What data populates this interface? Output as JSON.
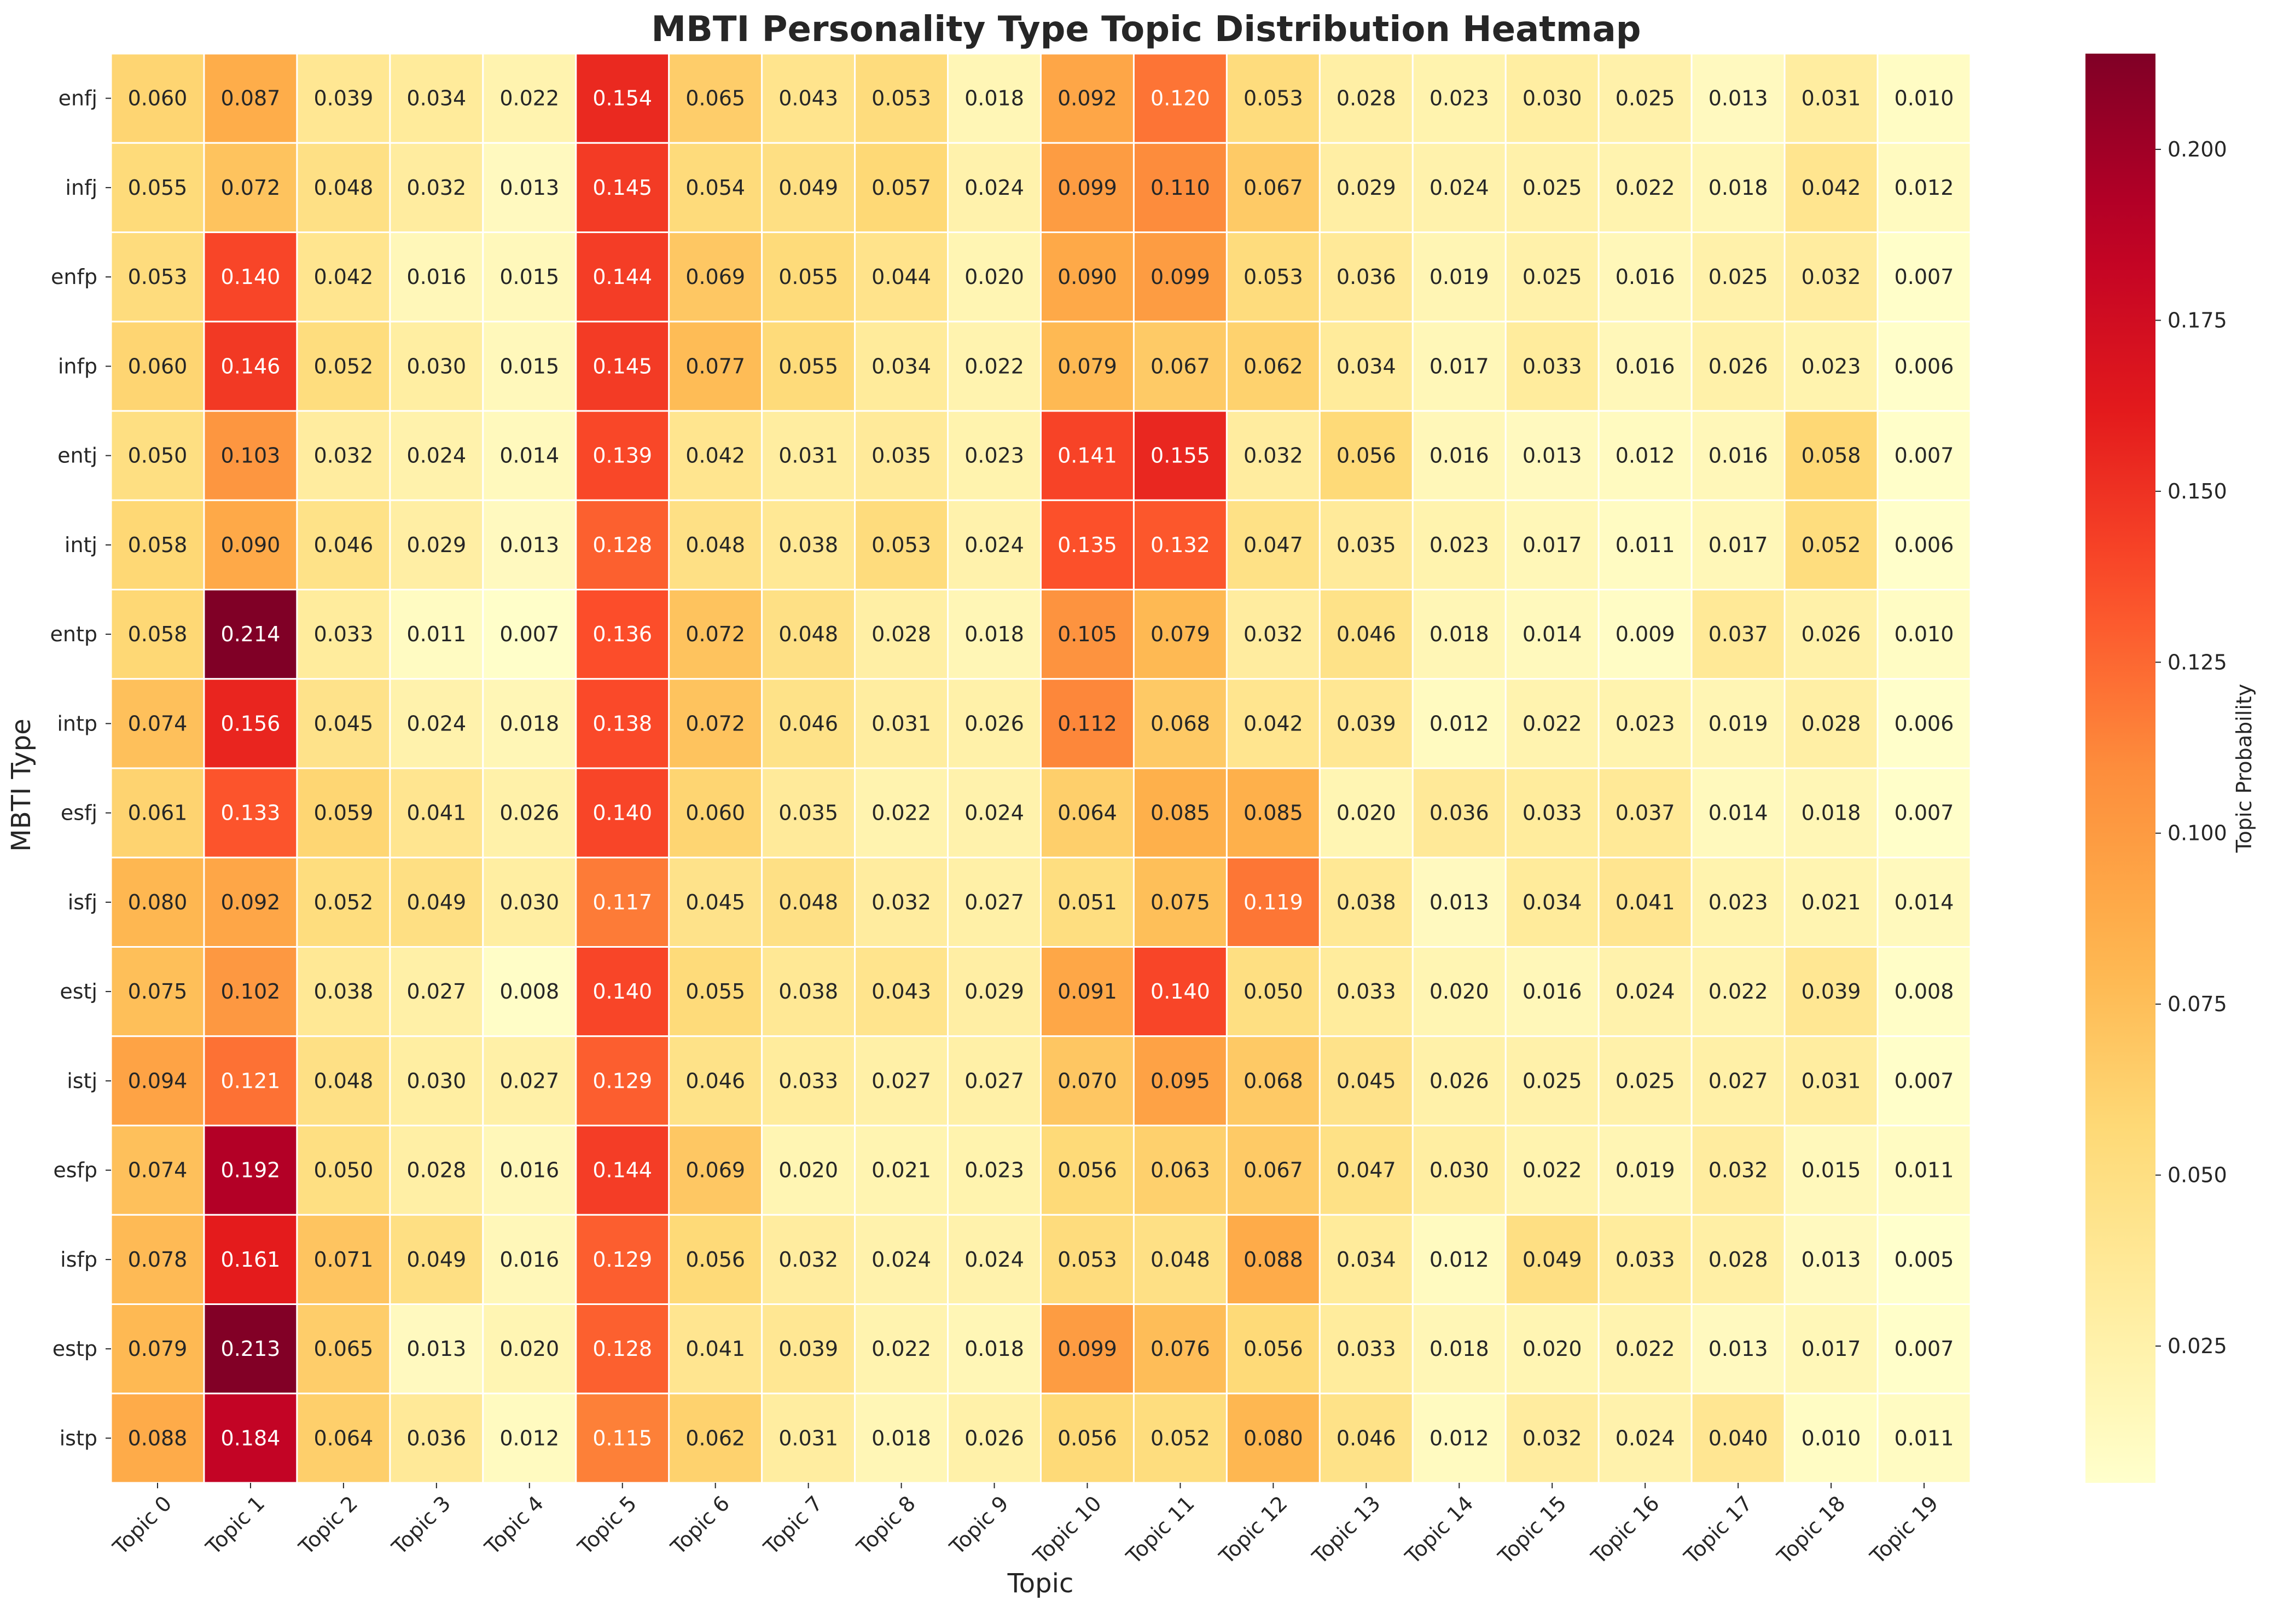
{
  "chart_data": {
    "type": "heatmap",
    "title": "MBTI Personality Type Topic Distribution Heatmap",
    "xlabel": "Topic",
    "ylabel": "MBTI Type",
    "colorbar_label": "Topic Probability",
    "colormap": "YlOrRd",
    "value_range": [
      0.005,
      0.214
    ],
    "colorbar_ticks": [
      "0.025",
      "0.050",
      "0.075",
      "0.100",
      "0.125",
      "0.150",
      "0.175",
      "0.200"
    ],
    "colorbar_tick_values": [
      0.025,
      0.05,
      0.075,
      0.1,
      0.125,
      0.15,
      0.175,
      0.2
    ],
    "columns": [
      "Topic 0",
      "Topic 1",
      "Topic 2",
      "Topic 3",
      "Topic 4",
      "Topic 5",
      "Topic 6",
      "Topic 7",
      "Topic 8",
      "Topic 9",
      "Topic 10",
      "Topic 11",
      "Topic 12",
      "Topic 13",
      "Topic 14",
      "Topic 15",
      "Topic 16",
      "Topic 17",
      "Topic 18",
      "Topic 19"
    ],
    "rows": [
      "enfj",
      "infj",
      "enfp",
      "infp",
      "entj",
      "intj",
      "entp",
      "intp",
      "esfj",
      "isfj",
      "estj",
      "istj",
      "esfp",
      "isfp",
      "estp",
      "istp"
    ],
    "values": [
      [
        0.06,
        0.087,
        0.039,
        0.034,
        0.022,
        0.154,
        0.065,
        0.043,
        0.053,
        0.018,
        0.092,
        0.12,
        0.053,
        0.028,
        0.023,
        0.03,
        0.025,
        0.013,
        0.031,
        0.01
      ],
      [
        0.055,
        0.072,
        0.048,
        0.032,
        0.013,
        0.145,
        0.054,
        0.049,
        0.057,
        0.024,
        0.099,
        0.11,
        0.067,
        0.029,
        0.024,
        0.025,
        0.022,
        0.018,
        0.042,
        0.012
      ],
      [
        0.053,
        0.14,
        0.042,
        0.016,
        0.015,
        0.144,
        0.069,
        0.055,
        0.044,
        0.02,
        0.09,
        0.099,
        0.053,
        0.036,
        0.019,
        0.025,
        0.016,
        0.025,
        0.032,
        0.007
      ],
      [
        0.06,
        0.146,
        0.052,
        0.03,
        0.015,
        0.145,
        0.077,
        0.055,
        0.034,
        0.022,
        0.079,
        0.067,
        0.062,
        0.034,
        0.017,
        0.033,
        0.016,
        0.026,
        0.023,
        0.006
      ],
      [
        0.05,
        0.103,
        0.032,
        0.024,
        0.014,
        0.139,
        0.042,
        0.031,
        0.035,
        0.023,
        0.141,
        0.155,
        0.032,
        0.056,
        0.016,
        0.013,
        0.012,
        0.016,
        0.058,
        0.007
      ],
      [
        0.058,
        0.09,
        0.046,
        0.029,
        0.013,
        0.128,
        0.048,
        0.038,
        0.053,
        0.024,
        0.135,
        0.132,
        0.047,
        0.035,
        0.023,
        0.017,
        0.011,
        0.017,
        0.052,
        0.006
      ],
      [
        0.058,
        0.214,
        0.033,
        0.011,
        0.007,
        0.136,
        0.072,
        0.048,
        0.028,
        0.018,
        0.105,
        0.079,
        0.032,
        0.046,
        0.018,
        0.014,
        0.009,
        0.037,
        0.026,
        0.01
      ],
      [
        0.074,
        0.156,
        0.045,
        0.024,
        0.018,
        0.138,
        0.072,
        0.046,
        0.031,
        0.026,
        0.112,
        0.068,
        0.042,
        0.039,
        0.012,
        0.022,
        0.023,
        0.019,
        0.028,
        0.006
      ],
      [
        0.061,
        0.133,
        0.059,
        0.041,
        0.026,
        0.14,
        0.06,
        0.035,
        0.022,
        0.024,
        0.064,
        0.085,
        0.085,
        0.02,
        0.036,
        0.033,
        0.037,
        0.014,
        0.018,
        0.007
      ],
      [
        0.08,
        0.092,
        0.052,
        0.049,
        0.03,
        0.117,
        0.045,
        0.048,
        0.032,
        0.027,
        0.051,
        0.075,
        0.119,
        0.038,
        0.013,
        0.034,
        0.041,
        0.023,
        0.021,
        0.014
      ],
      [
        0.075,
        0.102,
        0.038,
        0.027,
        0.008,
        0.14,
        0.055,
        0.038,
        0.043,
        0.029,
        0.091,
        0.14,
        0.05,
        0.033,
        0.02,
        0.016,
        0.024,
        0.022,
        0.039,
        0.008
      ],
      [
        0.094,
        0.121,
        0.048,
        0.03,
        0.027,
        0.129,
        0.046,
        0.033,
        0.027,
        0.027,
        0.07,
        0.095,
        0.068,
        0.045,
        0.026,
        0.025,
        0.025,
        0.027,
        0.031,
        0.007
      ],
      [
        0.074,
        0.192,
        0.05,
        0.028,
        0.016,
        0.144,
        0.069,
        0.02,
        0.021,
        0.023,
        0.056,
        0.063,
        0.067,
        0.047,
        0.03,
        0.022,
        0.019,
        0.032,
        0.015,
        0.011
      ],
      [
        0.078,
        0.161,
        0.071,
        0.049,
        0.016,
        0.129,
        0.056,
        0.032,
        0.024,
        0.024,
        0.053,
        0.048,
        0.088,
        0.034,
        0.012,
        0.049,
        0.033,
        0.028,
        0.013,
        0.005
      ],
      [
        0.079,
        0.213,
        0.065,
        0.013,
        0.02,
        0.128,
        0.041,
        0.039,
        0.022,
        0.018,
        0.099,
        0.076,
        0.056,
        0.033,
        0.018,
        0.02,
        0.022,
        0.013,
        0.017,
        0.007
      ],
      [
        0.088,
        0.184,
        0.064,
        0.036,
        0.012,
        0.115,
        0.062,
        0.031,
        0.018,
        0.026,
        0.056,
        0.052,
        0.08,
        0.046,
        0.012,
        0.032,
        0.024,
        0.04,
        0.01,
        0.011
      ]
    ]
  }
}
